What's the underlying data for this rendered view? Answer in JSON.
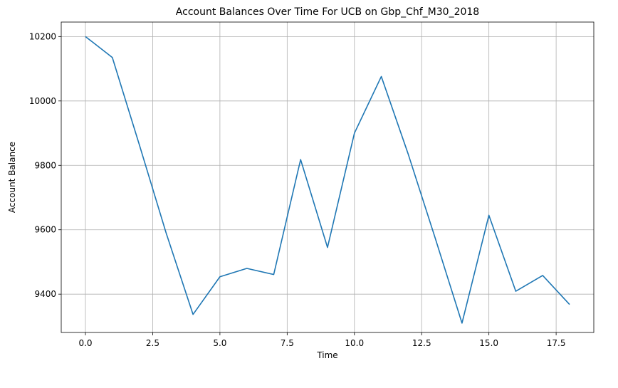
{
  "chart_data": {
    "type": "line",
    "title": "Account Balances Over Time For UCB on Gbp_Chf_M30_2018",
    "xlabel": "Time",
    "ylabel": "Account Balance",
    "xlim": [
      -0.9,
      18.9
    ],
    "ylim": [
      9281,
      10245
    ],
    "xticks": [
      0.0,
      2.5,
      5.0,
      7.5,
      10.0,
      12.5,
      15.0,
      17.5
    ],
    "xtick_labels": [
      "0.0",
      "2.5",
      "5.0",
      "7.5",
      "10.0",
      "12.5",
      "15.0",
      "17.5"
    ],
    "yticks": [
      9400,
      9600,
      9800,
      10000,
      10200
    ],
    "ytick_labels": [
      "9400",
      "9600",
      "9800",
      "10000",
      "10200"
    ],
    "grid": true,
    "series": [
      {
        "color": "#1f77b4",
        "x": [
          0,
          1,
          2,
          3,
          4,
          5,
          6,
          7,
          8,
          9,
          10,
          11,
          12,
          13,
          14,
          15,
          16,
          17,
          18
        ],
        "y": [
          10200,
          10135,
          9865,
          9590,
          9337,
          9454,
          9480,
          9461,
          9818,
          9545,
          9900,
          10076,
          9835,
          9575,
          9310,
          9645,
          9409,
          9458,
          9368
        ]
      }
    ]
  }
}
